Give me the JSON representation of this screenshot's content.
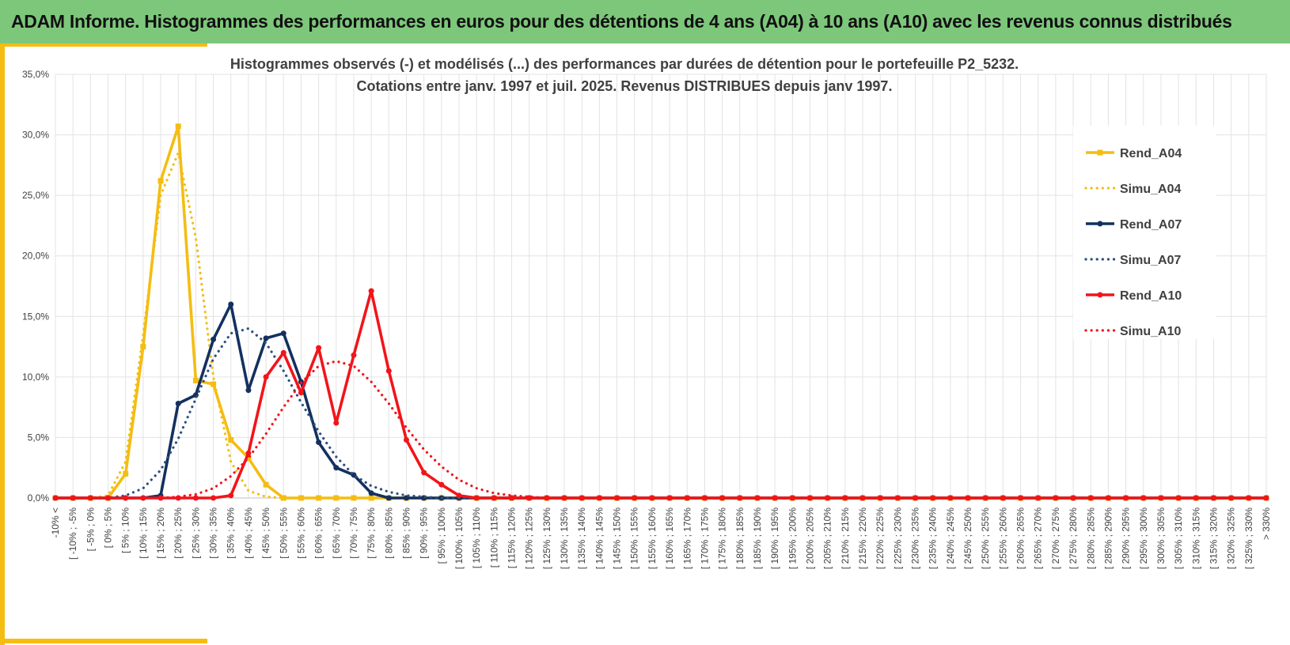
{
  "header": {
    "title": "ADAM Informe. Histogrammes des performances en euros pour des détentions de 4 ans (A04) à 10 ans (A10) avec les revenus connus distribués"
  },
  "colors": {
    "banner": "#7dc77b",
    "frame": "#f4bd12",
    "a04": "#f4bd12",
    "a07": "#13305f",
    "a07_simu": "#2a4f80",
    "a10": "#f2141a"
  },
  "chart_data": {
    "type": "line",
    "title": "Histogrammes observés (-) et modélisés (...) des performances par durées de détention pour le portefeuille P2_5232.",
    "subtitle": "Cotations entre janv. 1997 et juil. 2025. Revenus DISTRIBUES depuis janv 1997.",
    "xlabel": "",
    "ylabel": "",
    "ylim": [
      0,
      35
    ],
    "yticks": [
      "0,0%",
      "5,0%",
      "10,0%",
      "15,0%",
      "20,0%",
      "25,0%",
      "30,0%",
      "35,0%"
    ],
    "grid": true,
    "legend_position": "right",
    "categories": [
      "-10% <",
      "[ -10% ; -5%",
      "[ -5% ; 0%",
      "[ 0% ; 5%",
      "[ 5% ; 10%",
      "[ 10% ; 15%",
      "[ 15% ; 20%",
      "[ 20% ; 25%",
      "[ 25% ; 30%",
      "[ 30% ; 35%",
      "[ 35% ; 40%",
      "[ 40% ; 45%",
      "[ 45% ; 50%",
      "[ 50% ; 55%",
      "[ 55% ; 60%",
      "[ 60% ; 65%",
      "[ 65% ; 70%",
      "[ 70% ; 75%",
      "[ 75% ; 80%",
      "[ 80% ; 85%",
      "[ 85% ; 90%",
      "[ 90% ; 95%",
      "[ 95% ; 100%",
      "[ 100% ; 105%",
      "[ 105% ; 110%",
      "[ 110% ; 115%",
      "[ 115% ; 120%",
      "[ 120% ; 125%",
      "[ 125% ; 130%",
      "[ 130% ; 135%",
      "[ 135% ; 140%",
      "[ 140% ; 145%",
      "[ 145% ; 150%",
      "[ 150% ; 155%",
      "[ 155% ; 160%",
      "[ 160% ; 165%",
      "[ 165% ; 170%",
      "[ 170% ; 175%",
      "[ 175% ; 180%",
      "[ 180% ; 185%",
      "[ 185% ; 190%",
      "[ 190% ; 195%",
      "[ 195% ; 200%",
      "[ 200% ; 205%",
      "[ 205% ; 210%",
      "[ 210% ; 215%",
      "[ 215% ; 220%",
      "[ 220% ; 225%",
      "[ 225% ; 230%",
      "[ 230% ; 235%",
      "[ 235% ; 240%",
      "[ 240% ; 245%",
      "[ 245% ; 250%",
      "[ 250% ; 255%",
      "[ 255% ; 260%",
      "[ 260% ; 265%",
      "[ 265% ; 270%",
      "[ 270% ; 275%",
      "[ 275% ; 280%",
      "[ 280% ; 285%",
      "[ 285% ; 290%",
      "[ 290% ; 295%",
      "[ 295% ; 300%",
      "[ 300% ; 305%",
      "[ 305% ; 310%",
      "[ 310% ; 315%",
      "[ 315% ; 320%",
      "[ 320% ; 325%",
      "[ 325% ; 330%",
      "> 330%"
    ],
    "series": [
      {
        "name": "Rend_A04",
        "style": "solid",
        "marker": "square",
        "color": "#f4bd12",
        "values": [
          0,
          0,
          0,
          0,
          2.0,
          12.5,
          26.2,
          30.7,
          9.7,
          9.4,
          4.8,
          3.3,
          1.1,
          0,
          0,
          0,
          0,
          0,
          0,
          0,
          0,
          0,
          0,
          0,
          0,
          0,
          0,
          0,
          0,
          0,
          0,
          0,
          0,
          0,
          0,
          0,
          0,
          0,
          0,
          0,
          0,
          0,
          0,
          0,
          0,
          0,
          0,
          0,
          0,
          0,
          0,
          0,
          0,
          0,
          0,
          0,
          0,
          0,
          0,
          0,
          0,
          0,
          0,
          0,
          0,
          0,
          0,
          0,
          0,
          0
        ]
      },
      {
        "name": "Simu_A04",
        "style": "dotted",
        "color": "#f4bd12",
        "values": [
          0,
          0,
          0,
          0.2,
          3.0,
          13.5,
          25.0,
          28.5,
          21.5,
          10.0,
          3.0,
          0.6,
          0.1,
          0,
          0,
          0,
          0,
          0,
          0,
          0,
          0,
          0,
          0,
          0,
          0,
          0,
          0,
          0,
          0,
          0,
          0,
          0,
          0,
          0,
          0,
          0,
          0,
          0,
          0,
          0,
          0,
          0,
          0,
          0,
          0,
          0,
          0,
          0,
          0,
          0,
          0,
          0,
          0,
          0,
          0,
          0,
          0,
          0,
          0,
          0,
          0,
          0,
          0,
          0,
          0,
          0,
          0,
          0,
          0,
          0
        ]
      },
      {
        "name": "Rend_A07",
        "style": "solid",
        "marker": "circle",
        "color": "#13305f",
        "values": [
          0,
          0,
          0,
          0,
          0,
          0,
          0.2,
          7.8,
          8.5,
          13.1,
          16.0,
          8.9,
          13.2,
          13.6,
          9.6,
          4.6,
          2.5,
          1.9,
          0.4,
          0,
          0,
          0,
          0,
          0,
          0,
          0,
          0,
          0,
          0,
          0,
          0,
          0,
          0,
          0,
          0,
          0,
          0,
          0,
          0,
          0,
          0,
          0,
          0,
          0,
          0,
          0,
          0,
          0,
          0,
          0,
          0,
          0,
          0,
          0,
          0,
          0,
          0,
          0,
          0,
          0,
          0,
          0,
          0,
          0,
          0,
          0,
          0,
          0,
          0,
          0
        ]
      },
      {
        "name": "Simu_A07",
        "style": "dotted",
        "color": "#2a4f80",
        "values": [
          0,
          0,
          0,
          0,
          0.2,
          0.8,
          2.3,
          4.9,
          8.2,
          11.5,
          13.6,
          14.0,
          12.8,
          10.5,
          7.9,
          5.5,
          3.4,
          1.9,
          1.0,
          0.5,
          0.2,
          0.1,
          0,
          0,
          0,
          0,
          0,
          0,
          0,
          0,
          0,
          0,
          0,
          0,
          0,
          0,
          0,
          0,
          0,
          0,
          0,
          0,
          0,
          0,
          0,
          0,
          0,
          0,
          0,
          0,
          0,
          0,
          0,
          0,
          0,
          0,
          0,
          0,
          0,
          0,
          0,
          0,
          0,
          0,
          0,
          0,
          0,
          0,
          0,
          0
        ]
      },
      {
        "name": "Rend_A10",
        "style": "solid",
        "marker": "circle",
        "color": "#f2141a",
        "values": [
          0,
          0,
          0,
          0,
          0,
          0,
          0,
          0,
          0,
          0,
          0.2,
          3.7,
          10.0,
          12.0,
          8.7,
          12.4,
          6.2,
          11.8,
          17.1,
          10.5,
          4.8,
          2.1,
          1.1,
          0.2,
          0,
          0,
          0,
          0,
          0,
          0,
          0,
          0,
          0,
          0,
          0,
          0,
          0,
          0,
          0,
          0,
          0,
          0,
          0,
          0,
          0,
          0,
          0,
          0,
          0,
          0,
          0,
          0,
          0,
          0,
          0,
          0,
          0,
          0,
          0,
          0,
          0,
          0,
          0,
          0,
          0,
          0,
          0,
          0,
          0,
          0
        ]
      },
      {
        "name": "Simu_A10",
        "style": "dotted",
        "color": "#f2141a",
        "values": [
          0,
          0,
          0,
          0,
          0,
          0,
          0,
          0.1,
          0.3,
          0.8,
          1.8,
          3.3,
          5.3,
          7.5,
          9.5,
          10.9,
          11.3,
          10.9,
          9.6,
          7.8,
          5.8,
          4.0,
          2.6,
          1.5,
          0.8,
          0.4,
          0.2,
          0.1,
          0,
          0,
          0,
          0,
          0,
          0,
          0,
          0,
          0,
          0,
          0,
          0,
          0,
          0,
          0,
          0,
          0,
          0,
          0,
          0,
          0,
          0,
          0,
          0,
          0,
          0,
          0,
          0,
          0,
          0,
          0,
          0,
          0,
          0,
          0,
          0,
          0,
          0,
          0,
          0,
          0,
          0
        ]
      }
    ]
  }
}
